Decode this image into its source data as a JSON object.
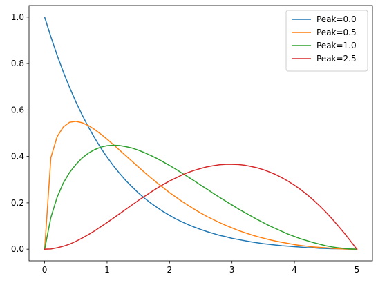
{
  "chart_data": {
    "type": "line",
    "title": "",
    "xlabel": "",
    "ylabel": "",
    "xlim": [
      -0.25,
      5.25
    ],
    "ylim": [
      -0.05,
      1.05
    ],
    "xticks": [
      0,
      1,
      2,
      3,
      4,
      5
    ],
    "yticks": [
      0.0,
      0.2,
      0.4,
      0.6,
      0.8,
      1.0
    ],
    "xtick_labels": [
      "0",
      "1",
      "2",
      "3",
      "4",
      "5"
    ],
    "ytick_labels": [
      "0.0",
      "0.2",
      "0.4",
      "0.6",
      "0.8",
      "1.0"
    ],
    "grid": false,
    "legend_position": "top-right",
    "x": [
      0.0,
      0.1,
      0.2,
      0.3,
      0.4,
      0.5,
      0.6,
      0.7,
      0.8,
      0.9,
      1.0,
      1.1,
      1.2,
      1.3,
      1.4,
      1.5,
      1.6,
      1.7,
      1.8,
      1.9,
      2.0,
      2.1,
      2.2,
      2.3,
      2.4,
      2.5,
      2.6,
      2.7,
      2.8,
      2.9,
      3.0,
      3.1,
      3.2,
      3.3,
      3.4,
      3.5,
      3.6,
      3.7,
      3.8,
      3.9,
      4.0,
      4.1,
      4.2,
      4.3,
      4.4,
      4.5,
      4.6,
      4.7,
      4.8,
      4.9,
      5.0
    ],
    "series": [
      {
        "name": "Peak=0.0",
        "color": "#1f77b4",
        "values": [
          1.0,
          0.915,
          0.836,
          0.763,
          0.697,
          0.635,
          0.579,
          0.527,
          0.48,
          0.436,
          0.397,
          0.36,
          0.327,
          0.296,
          0.269,
          0.243,
          0.22,
          0.199,
          0.18,
          0.162,
          0.146,
          0.131,
          0.118,
          0.106,
          0.095,
          0.085,
          0.076,
          0.068,
          0.06,
          0.054,
          0.047,
          0.042,
          0.037,
          0.032,
          0.028,
          0.024,
          0.021,
          0.018,
          0.015,
          0.013,
          0.011,
          0.009,
          0.007,
          0.006,
          0.004,
          0.003,
          0.002,
          0.002,
          0.001,
          0.0,
          0.0
        ]
      },
      {
        "name": "Peak=0.5",
        "color": "#ff7f0e",
        "values": [
          0.0,
          0.395,
          0.485,
          0.527,
          0.547,
          0.551,
          0.545,
          0.533,
          0.516,
          0.496,
          0.474,
          0.451,
          0.427,
          0.403,
          0.379,
          0.355,
          0.331,
          0.308,
          0.286,
          0.265,
          0.244,
          0.225,
          0.206,
          0.189,
          0.172,
          0.156,
          0.141,
          0.128,
          0.115,
          0.103,
          0.092,
          0.081,
          0.072,
          0.063,
          0.055,
          0.048,
          0.041,
          0.035,
          0.03,
          0.025,
          0.02,
          0.016,
          0.013,
          0.01,
          0.008,
          0.006,
          0.004,
          0.002,
          0.001,
          0.0,
          0.0
        ]
      },
      {
        "name": "Peak=1.0",
        "color": "#2ca02c",
        "values": [
          0.0,
          0.137,
          0.224,
          0.286,
          0.331,
          0.365,
          0.393,
          0.414,
          0.429,
          0.44,
          0.446,
          0.448,
          0.447,
          0.442,
          0.436,
          0.427,
          0.416,
          0.404,
          0.391,
          0.376,
          0.361,
          0.345,
          0.328,
          0.311,
          0.294,
          0.276,
          0.259,
          0.241,
          0.224,
          0.207,
          0.191,
          0.174,
          0.159,
          0.144,
          0.129,
          0.115,
          0.101,
          0.089,
          0.077,
          0.065,
          0.055,
          0.045,
          0.037,
          0.029,
          0.022,
          0.015,
          0.01,
          0.006,
          0.003,
          0.001,
          0.0
        ]
      },
      {
        "name": "Peak=2.5",
        "color": "#d62728",
        "values": [
          0.0,
          0.001,
          0.006,
          0.013,
          0.022,
          0.034,
          0.048,
          0.063,
          0.079,
          0.097,
          0.115,
          0.134,
          0.153,
          0.172,
          0.191,
          0.21,
          0.228,
          0.246,
          0.263,
          0.279,
          0.294,
          0.307,
          0.32,
          0.331,
          0.34,
          0.348,
          0.355,
          0.36,
          0.364,
          0.366,
          0.366,
          0.365,
          0.362,
          0.357,
          0.351,
          0.343,
          0.333,
          0.322,
          0.308,
          0.293,
          0.276,
          0.257,
          0.236,
          0.213,
          0.188,
          0.161,
          0.132,
          0.101,
          0.069,
          0.035,
          0.0
        ]
      }
    ]
  }
}
